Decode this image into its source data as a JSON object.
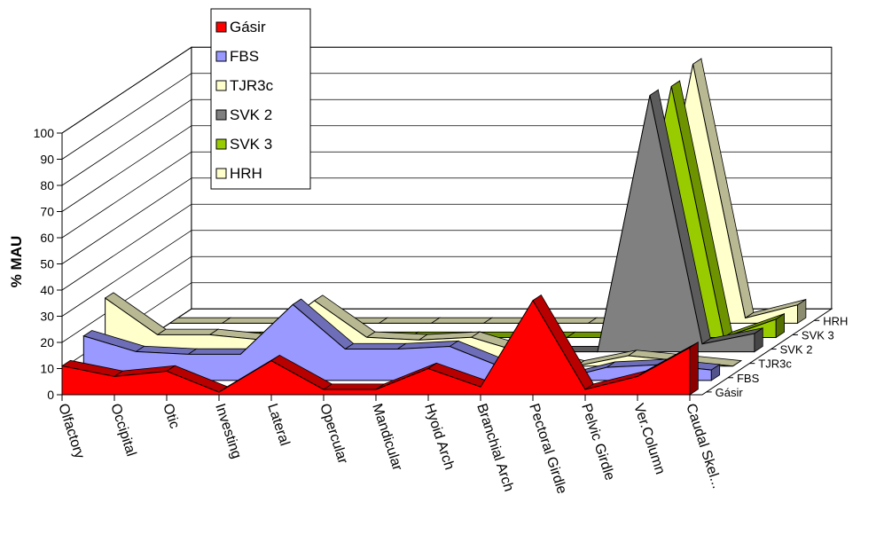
{
  "chart_data": {
    "type": "area",
    "title": "",
    "xlabel": "",
    "ylabel": "% MAU",
    "ylim": [
      0,
      100
    ],
    "yticks": [
      0,
      10,
      20,
      30,
      40,
      50,
      60,
      70,
      80,
      90,
      100
    ],
    "categories": [
      "Olfactory",
      "Occipital",
      "Otic",
      "Investing",
      "Lateral",
      "Opercular",
      "Mandicular",
      "Hyoid Arch",
      "Branchial Arch",
      "Pectoral Girdle",
      "Pelvic Girdle",
      "Ver.Column",
      "Caudal Skel..."
    ],
    "legend_position": "top-left",
    "grid": true,
    "series": [
      {
        "name": "Gásir",
        "color": "#ff0000",
        "values": [
          11,
          7,
          9,
          1,
          13,
          2,
          2,
          10,
          3,
          36,
          2,
          7,
          18
        ]
      },
      {
        "name": "FBS",
        "color": "#9999ff",
        "values": [
          17,
          11,
          10,
          10,
          29,
          12,
          12,
          13,
          5,
          0,
          5,
          6,
          4
        ]
      },
      {
        "name": "TJR3c",
        "color": "#ffffcc",
        "values": [
          26,
          12,
          12,
          10,
          25,
          11,
          10,
          11,
          5,
          0,
          4,
          2,
          0
        ]
      },
      {
        "name": "SVK 2",
        "color": "#808080",
        "values": [
          0,
          0,
          0,
          0,
          0,
          0,
          0,
          0,
          0,
          0,
          98,
          3,
          7
        ]
      },
      {
        "name": "SVK 3",
        "color": "#99cc00",
        "values": [
          0,
          0,
          0,
          0,
          0,
          0,
          0,
          0,
          0,
          0,
          96,
          0,
          7
        ]
      },
      {
        "name": "HRH",
        "color": "#ffffcc",
        "values": [
          0,
          0,
          0,
          0,
          0,
          0,
          0,
          0,
          0,
          0,
          99,
          2,
          7
        ]
      }
    ]
  }
}
